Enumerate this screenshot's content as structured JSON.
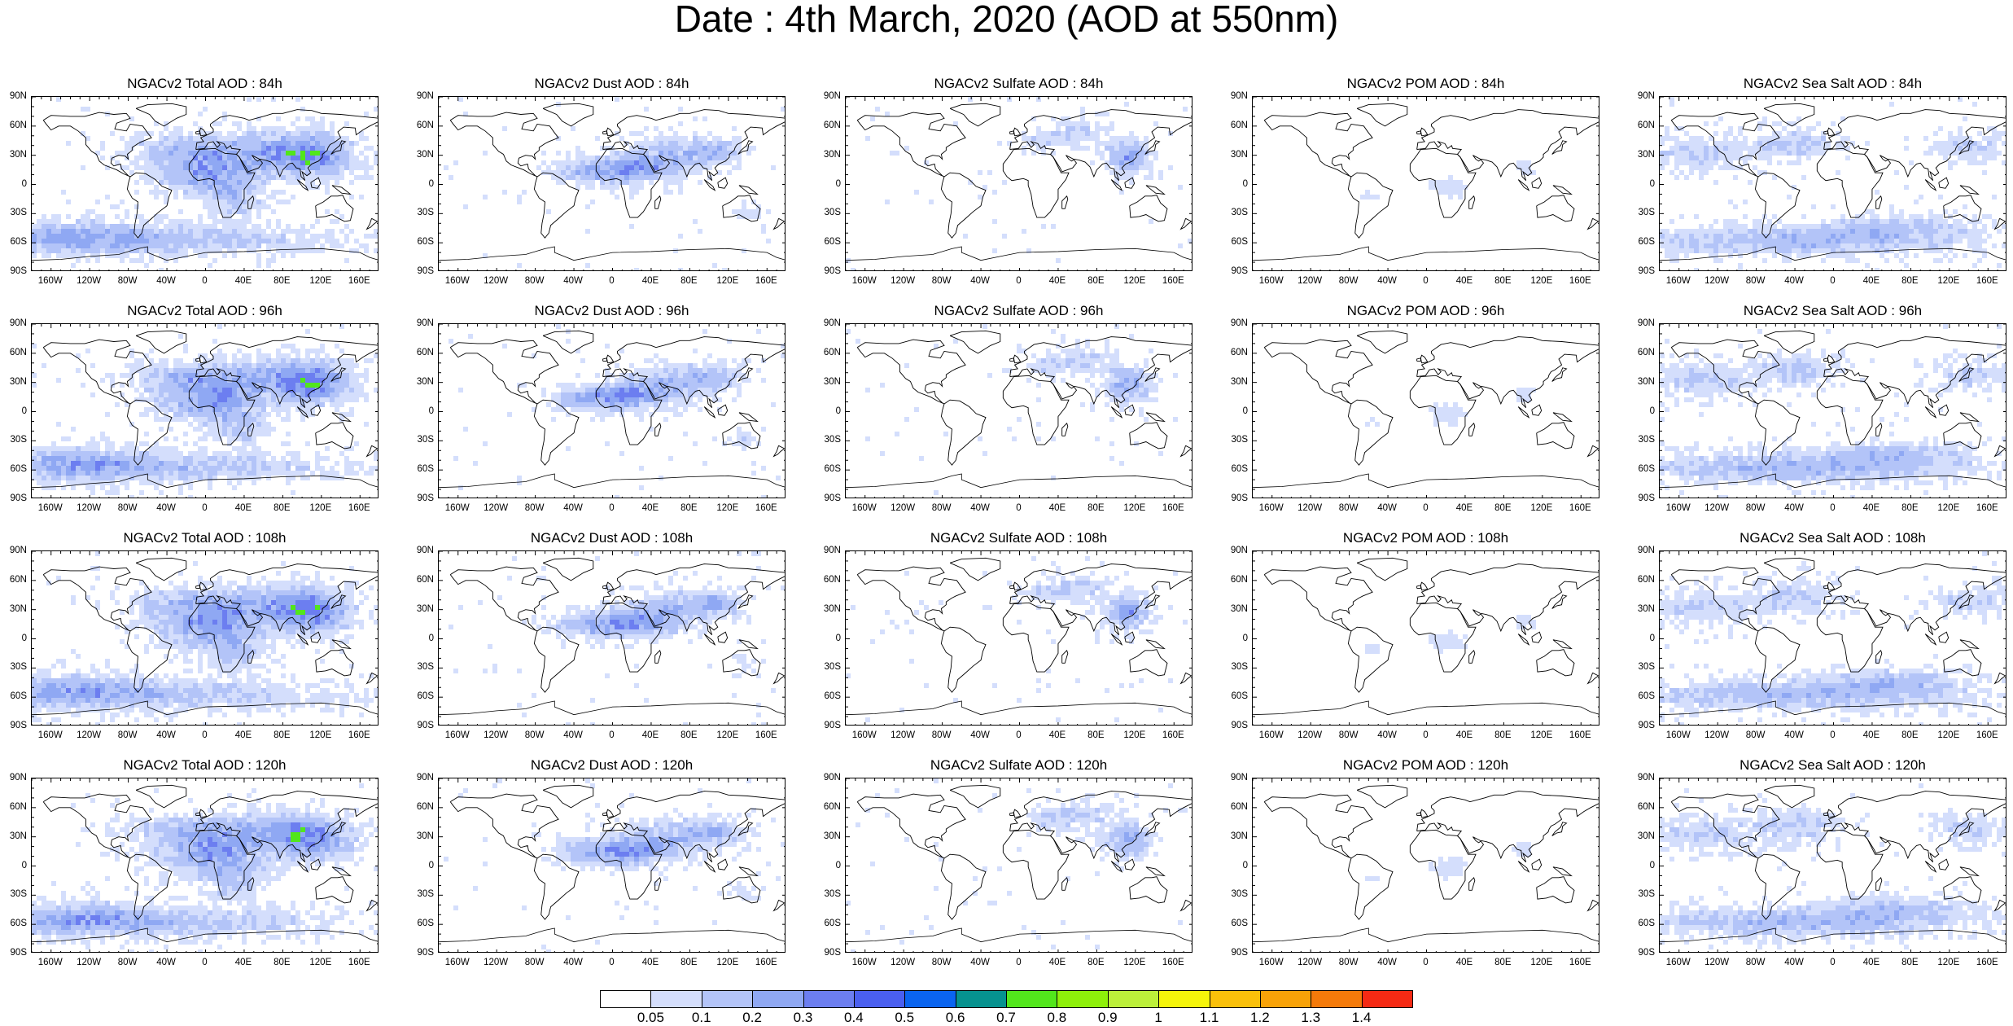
{
  "title": "Date : 4th March, 2020 (AOD at 550nm)",
  "lat_labels": [
    "90N",
    "60N",
    "30N",
    "0",
    "30S",
    "60S",
    "90S"
  ],
  "lon_labels": [
    "160W",
    "120W",
    "80W",
    "40W",
    "0",
    "40E",
    "80E",
    "120E",
    "160E"
  ],
  "columns": [
    "Total",
    "Dust",
    "Sulfate",
    "POM",
    "Sea Salt"
  ],
  "rows": [
    {
      "forecast_hour": "84h",
      "panels": [
        {
          "title": "NGACv2 Total AOD : 84h",
          "species": "Total"
        },
        {
          "title": "NGACv2 Dust AOD : 84h",
          "species": "Dust"
        },
        {
          "title": "NGACv2 Sulfate AOD : 84h",
          "species": "Sulfate"
        },
        {
          "title": "NGACv2 POM AOD : 84h",
          "species": "POM"
        },
        {
          "title": "NGACv2 Sea Salt AOD : 84h",
          "species": "Sea Salt"
        }
      ]
    },
    {
      "forecast_hour": "96h",
      "panels": [
        {
          "title": "NGACv2 Total AOD : 96h",
          "species": "Total"
        },
        {
          "title": "NGACv2 Dust AOD : 96h",
          "species": "Dust"
        },
        {
          "title": "NGACv2 Sulfate AOD : 96h",
          "species": "Sulfate"
        },
        {
          "title": "NGACv2 POM AOD : 96h",
          "species": "POM"
        },
        {
          "title": "NGACv2 Sea Salt AOD : 96h",
          "species": "Sea Salt"
        }
      ]
    },
    {
      "forecast_hour": "108h",
      "panels": [
        {
          "title": "NGACv2 Total AOD : 108h",
          "species": "Total"
        },
        {
          "title": "NGACv2 Dust AOD : 108h",
          "species": "Dust"
        },
        {
          "title": "NGACv2 Sulfate AOD : 108h",
          "species": "Sulfate"
        },
        {
          "title": "NGACv2 POM AOD : 108h",
          "species": "POM"
        },
        {
          "title": "NGACv2 Sea Salt AOD : 108h",
          "species": "Sea Salt"
        }
      ]
    },
    {
      "forecast_hour": "120h",
      "panels": [
        {
          "title": "NGACv2 Total AOD : 120h",
          "species": "Total"
        },
        {
          "title": "NGACv2 Dust AOD : 120h",
          "species": "Dust"
        },
        {
          "title": "NGACv2 Sulfate AOD : 120h",
          "species": "Sulfate"
        },
        {
          "title": "NGACv2 POM AOD : 120h",
          "species": "POM"
        },
        {
          "title": "NGACv2 Sea Salt  AOD : 120h",
          "species": "Sea Salt"
        }
      ]
    }
  ],
  "colorbar": {
    "levels": [
      "0.05",
      "0.1",
      "0.2",
      "0.3",
      "0.4",
      "0.5",
      "0.6",
      "0.7",
      "0.8",
      "0.9",
      "1",
      "1.1",
      "1.2",
      "1.3",
      "1.4"
    ],
    "colors": [
      "#ffffff",
      "#d4defc",
      "#b3c4f8",
      "#8fa8f3",
      "#6c7ef0",
      "#4a5ff0",
      "#0a64f0",
      "#06928f",
      "#52e61c",
      "#8ef00a",
      "#bcf03a",
      "#f5f50a",
      "#fac00a",
      "#f8a208",
      "#f57a0a",
      "#f52a14"
    ]
  }
}
